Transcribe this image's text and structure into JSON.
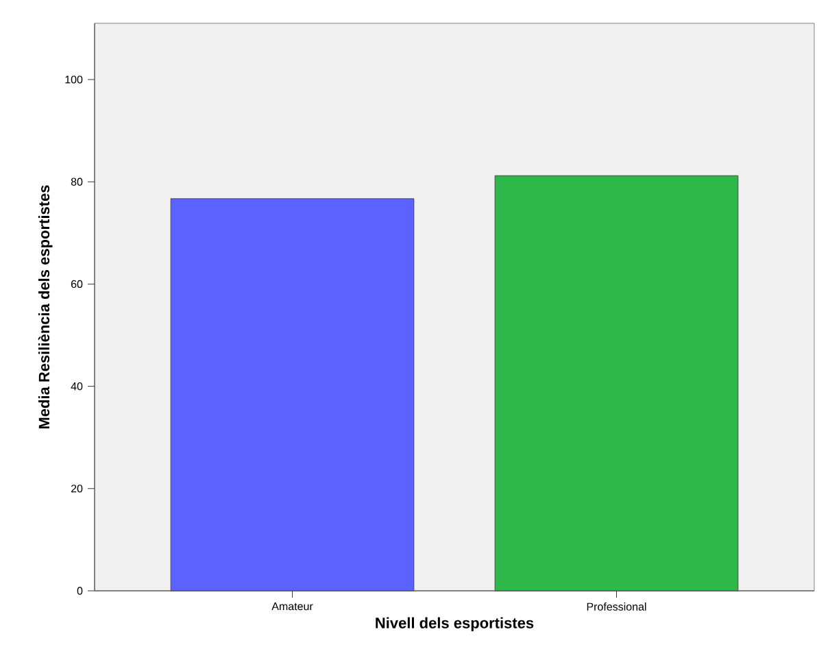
{
  "chart_data": {
    "type": "bar",
    "xlabel": "Nivell dels esportistes",
    "ylabel": "Media Resiliència dels esportistes",
    "categories": [
      "Amateur",
      "Professional"
    ],
    "values": [
      76.7,
      81.2
    ],
    "colors": [
      "#5c62ff",
      "#2eb84a"
    ],
    "ylim": [
      0,
      111
    ],
    "yticks": [
      0,
      20,
      40,
      60,
      80,
      100
    ]
  }
}
